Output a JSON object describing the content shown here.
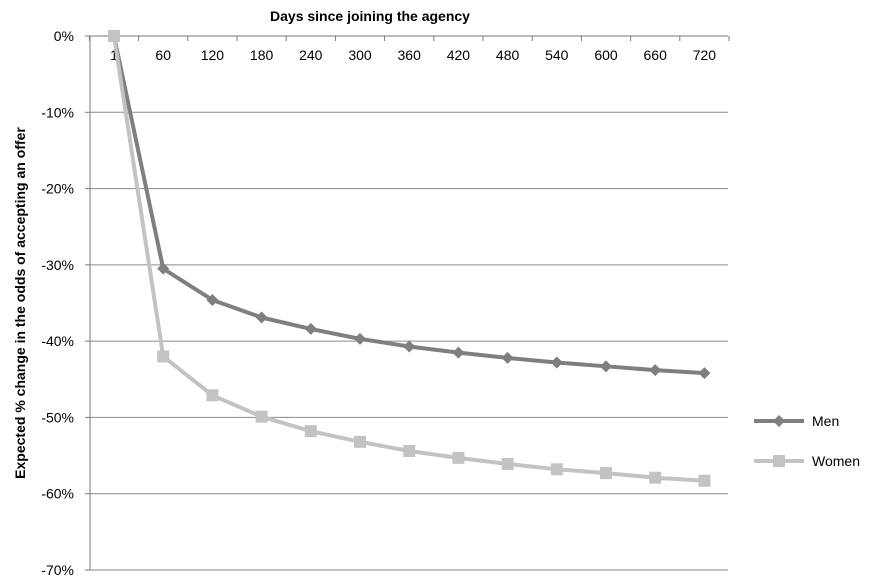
{
  "chart_data": {
    "type": "line",
    "xlabel": "Days since joining the agency",
    "ylabel": "Expected % change in the odds of accepting an offer",
    "x": [
      "1",
      "60",
      "120",
      "180",
      "240",
      "300",
      "360",
      "420",
      "480",
      "540",
      "600",
      "660",
      "720"
    ],
    "ylim": [
      -70,
      0
    ],
    "yticks": [
      "0%",
      "-10%",
      "-20%",
      "-30%",
      "-40%",
      "-50%",
      "-60%",
      "-70%"
    ],
    "grid": true,
    "legend_position": "right",
    "series": [
      {
        "name": "Men",
        "color": "#7f7f7f",
        "marker": "diamond",
        "values": [
          0,
          -30.5,
          -34.6,
          -36.9,
          -38.4,
          -39.7,
          -40.7,
          -41.5,
          -42.2,
          -42.8,
          -43.3,
          -43.8,
          -44.2
        ]
      },
      {
        "name": "Women",
        "color": "#c3c3c3",
        "marker": "square",
        "values": [
          0,
          -42.0,
          -47.1,
          -49.9,
          -51.8,
          -53.2,
          -54.4,
          -55.3,
          -56.1,
          -56.8,
          -57.3,
          -57.9,
          -58.3
        ]
      }
    ]
  }
}
